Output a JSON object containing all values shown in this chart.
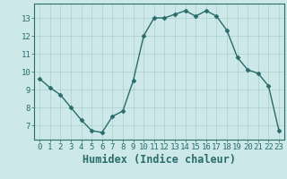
{
  "x": [
    0,
    1,
    2,
    3,
    4,
    5,
    6,
    7,
    8,
    9,
    10,
    11,
    12,
    13,
    14,
    15,
    16,
    17,
    18,
    19,
    20,
    21,
    22,
    23
  ],
  "y": [
    9.6,
    9.1,
    8.7,
    8.0,
    7.3,
    6.7,
    6.6,
    7.5,
    7.8,
    9.5,
    12.0,
    13.0,
    13.0,
    13.2,
    13.4,
    13.1,
    13.4,
    13.1,
    12.3,
    10.8,
    10.1,
    9.9,
    9.2,
    6.7
  ],
  "xlabel": "Humidex (Indice chaleur)",
  "xlim": [
    -0.5,
    23.5
  ],
  "ylim": [
    6.2,
    13.8
  ],
  "yticks": [
    7,
    8,
    9,
    10,
    11,
    12,
    13
  ],
  "xticks": [
    0,
    1,
    2,
    3,
    4,
    5,
    6,
    7,
    8,
    9,
    10,
    11,
    12,
    13,
    14,
    15,
    16,
    17,
    18,
    19,
    20,
    21,
    22,
    23
  ],
  "line_color": "#2a6b6b",
  "marker": "D",
  "marker_size": 2.5,
  "bg_color": "#cce8e8",
  "grid_color": "#aacfcf",
  "axis_color": "#2a6b6b",
  "tick_label_fontsize": 6.5,
  "xlabel_fontsize": 8.5
}
